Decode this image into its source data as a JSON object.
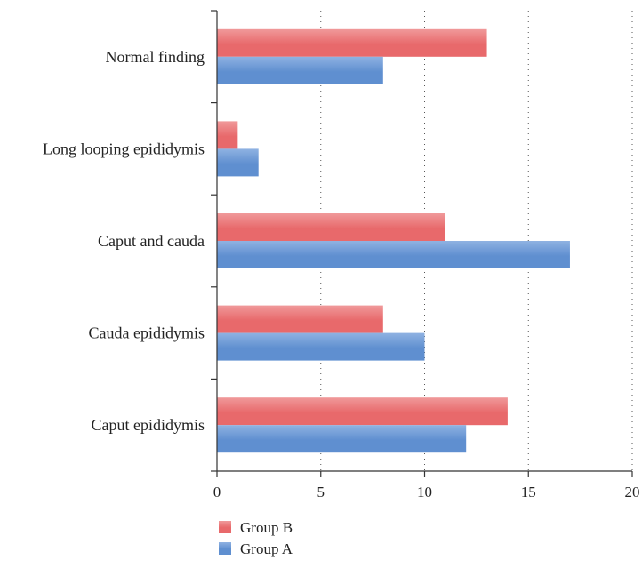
{
  "colors": {
    "group_b": "#e8696b",
    "group_b_light": "#f0999a",
    "group_a": "#5f8fd0",
    "group_a_light": "#8fb2e2"
  },
  "chart_data": {
    "type": "bar",
    "orientation": "horizontal",
    "categories": [
      "Normal finding",
      "Long looping epididymis",
      "Caput and cauda",
      "Cauda epididymis",
      "Caput epididymis"
    ],
    "series": [
      {
        "name": "Group B",
        "values": [
          13,
          1,
          11,
          8,
          14
        ]
      },
      {
        "name": "Group A",
        "values": [
          8,
          2,
          17,
          10,
          12
        ]
      }
    ],
    "xlim": [
      0,
      20
    ],
    "xticks": [
      0,
      5,
      10,
      15,
      20
    ],
    "grid": "vertical dotted",
    "legend_placement": "bottom-left",
    "title": "",
    "xlabel": "",
    "ylabel": ""
  }
}
